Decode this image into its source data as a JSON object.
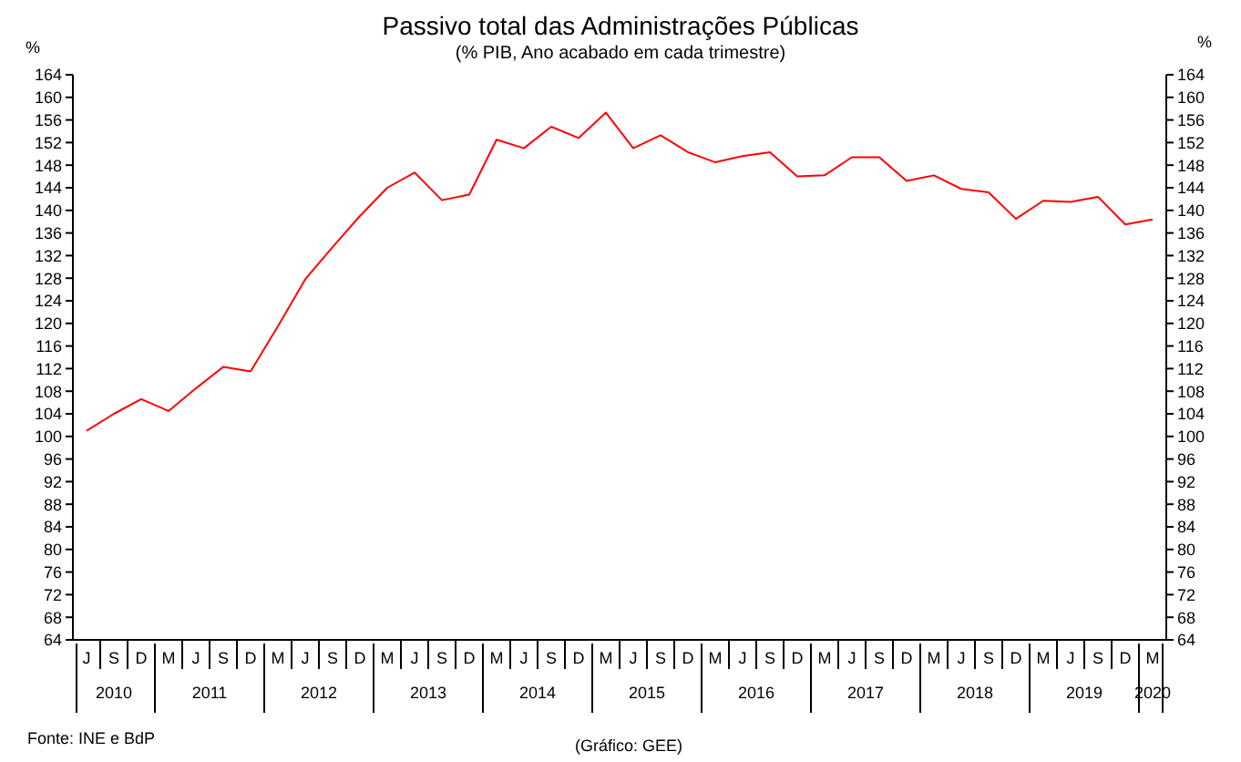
{
  "chart_data": {
    "type": "line",
    "title": "Passivo total das Administrações Públicas",
    "subtitle": "(% PIB, Ano acabado em cada trimestre)",
    "ylabel": "%",
    "y2label": "%",
    "categories": [
      "J",
      "S",
      "D",
      "M",
      "J",
      "S",
      "D",
      "M",
      "J",
      "S",
      "D",
      "M",
      "J",
      "S",
      "D",
      "M",
      "J",
      "S",
      "D",
      "M",
      "J",
      "S",
      "D",
      "M",
      "J",
      "S",
      "D",
      "M",
      "J",
      "S",
      "D",
      "M",
      "J",
      "S",
      "D",
      "M",
      "J",
      "S",
      "D",
      "M"
    ],
    "series": [
      {
        "color": "#ff0000",
        "values": [
          101,
          104,
          106.6,
          104.5,
          108.5,
          112.3,
          111.5,
          119.5,
          127.8,
          133.5,
          139,
          144,
          146.7,
          141.8,
          142.8,
          152.5,
          151,
          154.8,
          152.8,
          157.3,
          151,
          153.3,
          150.3,
          148.5,
          149.6,
          150.3,
          146,
          146.2,
          149.4,
          149.4,
          145.2,
          146.2,
          143.8,
          143.2,
          138.5,
          141.7,
          141.5,
          142.4,
          137.5,
          138.4
        ]
      }
    ],
    "ylim": [
      64,
      164
    ],
    "yticks": [
      64,
      68,
      72,
      76,
      80,
      84,
      88,
      92,
      96,
      100,
      104,
      108,
      112,
      116,
      120,
      124,
      128,
      132,
      136,
      140,
      144,
      148,
      152,
      156,
      160,
      164
    ],
    "y2lim": [
      64,
      164
    ],
    "y2ticks": [
      64,
      68,
      72,
      76,
      80,
      84,
      88,
      92,
      96,
      100,
      104,
      108,
      112,
      116,
      120,
      124,
      128,
      132,
      136,
      140,
      144,
      148,
      152,
      156,
      160,
      164
    ],
    "annotations": [
      "2010",
      "2011",
      "2012",
      "2013",
      "2014",
      "2015",
      "2016",
      "2017",
      "2018",
      "2019",
      "2020",
      "Fonte: INE e BdP",
      "(Gráfico: GEE)"
    ],
    "grid": false,
    "legend": false,
    "marker": "none",
    "line_style": "solid"
  }
}
